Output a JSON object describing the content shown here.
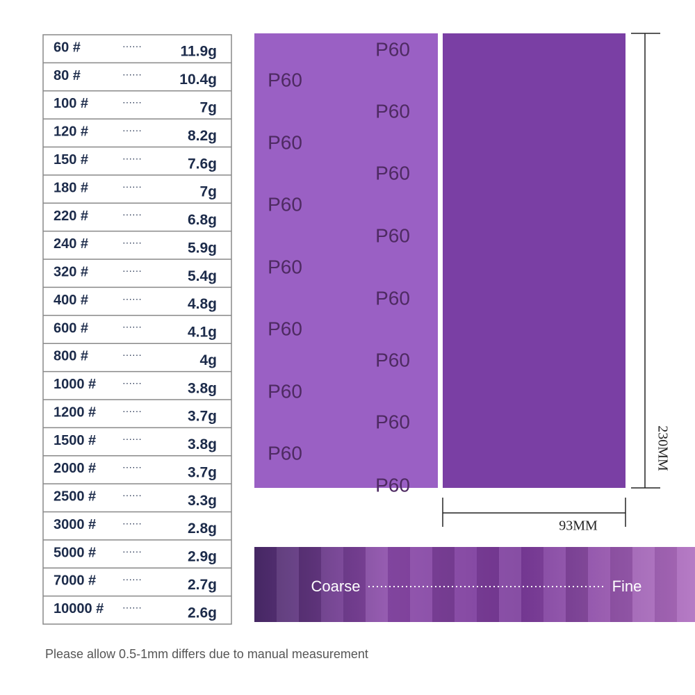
{
  "table": {
    "leader": "······",
    "rows": [
      [
        "60 #",
        "11.9g"
      ],
      [
        "80 #",
        "10.4g"
      ],
      [
        "100 #",
        "7g"
      ],
      [
        "120 #",
        "8.2g"
      ],
      [
        "150 #",
        "7.6g"
      ],
      [
        "180 #",
        "7g"
      ],
      [
        "220 #",
        "6.8g"
      ],
      [
        "240 #",
        "5.9g"
      ],
      [
        "320 #",
        "5.4g"
      ],
      [
        "400 #",
        "4.8g"
      ],
      [
        "600 #",
        "4.1g"
      ],
      [
        "800 #",
        "4g"
      ],
      [
        "1000 #",
        "3.8g"
      ],
      [
        "1200 #",
        "3.7g"
      ],
      [
        "1500 #",
        "3.8g"
      ],
      [
        "2000 #",
        "3.7g"
      ],
      [
        "2500 #",
        "3.3g"
      ],
      [
        "3000 #",
        "2.8g"
      ],
      [
        "5000 #",
        "2.9g"
      ],
      [
        "7000 #",
        "2.7g"
      ],
      [
        "10000 #",
        "2.6g"
      ]
    ]
  },
  "sheet": {
    "print": "P60",
    "height_label": "230MM",
    "width_label": "93MM"
  },
  "strip": {
    "left": "Coarse",
    "right": "Fine"
  },
  "note": "Please allow 0.5-1mm differs due to manual measurement"
}
